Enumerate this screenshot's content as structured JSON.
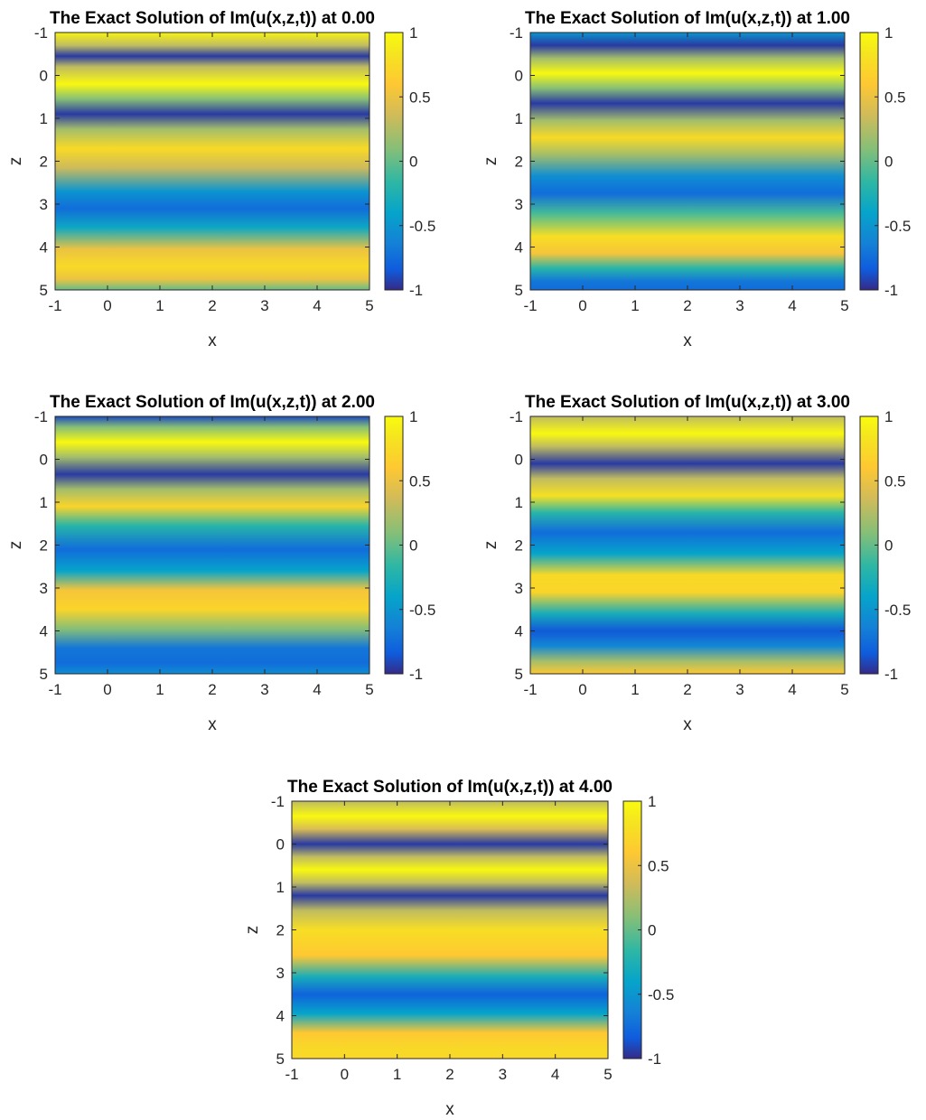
{
  "chart_data": [
    {
      "type": "heatmap",
      "title": "The Exact Solution of Im(u(x,z,t)) at 0.00",
      "t": 0.0,
      "xlabel": "x",
      "ylabel": "z",
      "xlim": [
        -1,
        5
      ],
      "ylim": [
        -1,
        5
      ],
      "y_reversed": true,
      "xticks": [
        "-1",
        "0",
        "1",
        "2",
        "3",
        "4",
        "5"
      ],
      "yticks": [
        "-1",
        "0",
        "1",
        "2",
        "3",
        "4",
        "5"
      ],
      "colorbar": {
        "ticks": [
          "1",
          "0.5",
          "0",
          "-0.5",
          "-1"
        ],
        "clim": [
          -1,
          1
        ],
        "colormap": "parula"
      },
      "stripes": [
        {
          "z": -1.0,
          "value": 0.95
        },
        {
          "z": -0.7,
          "value": 0.3
        },
        {
          "z": -0.45,
          "value": -0.95
        },
        {
          "z": -0.2,
          "value": 0.3
        },
        {
          "z": 0.2,
          "value": 0.98
        },
        {
          "z": 0.55,
          "value": 0.1
        },
        {
          "z": 0.9,
          "value": -0.95
        },
        {
          "z": 1.25,
          "value": 0.2
        },
        {
          "z": 1.7,
          "value": 0.75
        },
        {
          "z": 2.15,
          "value": 0.35
        },
        {
          "z": 2.7,
          "value": -0.5
        },
        {
          "z": 3.1,
          "value": -0.75
        },
        {
          "z": 3.55,
          "value": -0.35
        },
        {
          "z": 4.05,
          "value": 0.5
        },
        {
          "z": 4.45,
          "value": 0.75
        },
        {
          "z": 4.75,
          "value": 0.5
        },
        {
          "z": 5.0,
          "value": 0.0
        }
      ]
    },
    {
      "type": "heatmap",
      "title": "The Exact Solution of Im(u(x,z,t)) at 1.00",
      "t": 1.0,
      "xlabel": "x",
      "ylabel": "z",
      "xlim": [
        -1,
        5
      ],
      "ylim": [
        -1,
        5
      ],
      "y_reversed": true,
      "xticks": [
        "-1",
        "0",
        "1",
        "2",
        "3",
        "4",
        "5"
      ],
      "yticks": [
        "-1",
        "0",
        "1",
        "2",
        "3",
        "4",
        "5"
      ],
      "colorbar": {
        "ticks": [
          "1",
          "0.5",
          "0",
          "-0.5",
          "-1"
        ],
        "clim": [
          -1,
          1
        ],
        "colormap": "parula"
      },
      "stripes": [
        {
          "z": -1.0,
          "value": -0.5
        },
        {
          "z": -0.7,
          "value": -0.95
        },
        {
          "z": -0.4,
          "value": 0.2
        },
        {
          "z": -0.05,
          "value": 0.98
        },
        {
          "z": 0.3,
          "value": 0.1
        },
        {
          "z": 0.65,
          "value": -0.95
        },
        {
          "z": 1.05,
          "value": 0.2
        },
        {
          "z": 1.45,
          "value": 0.75
        },
        {
          "z": 1.85,
          "value": 0.2
        },
        {
          "z": 2.35,
          "value": -0.55
        },
        {
          "z": 2.75,
          "value": -0.75
        },
        {
          "z": 3.2,
          "value": -0.1
        },
        {
          "z": 3.75,
          "value": 0.78
        },
        {
          "z": 4.15,
          "value": 0.55
        },
        {
          "z": 4.5,
          "value": -0.2
        },
        {
          "z": 4.8,
          "value": -0.7
        },
        {
          "z": 5.0,
          "value": -0.75
        }
      ]
    },
    {
      "type": "heatmap",
      "title": "The Exact Solution of Im(u(x,z,t)) at 2.00",
      "t": 2.0,
      "xlabel": "x",
      "ylabel": "z",
      "xlim": [
        -1,
        5
      ],
      "ylim": [
        -1,
        5
      ],
      "y_reversed": true,
      "xticks": [
        "-1",
        "0",
        "1",
        "2",
        "3",
        "4",
        "5"
      ],
      "yticks": [
        "-1",
        "0",
        "1",
        "2",
        "3",
        "4",
        "5"
      ],
      "colorbar": {
        "ticks": [
          "1",
          "0.5",
          "0",
          "-0.5",
          "-1"
        ],
        "clim": [
          -1,
          1
        ],
        "colormap": "parula"
      },
      "stripes": [
        {
          "z": -1.0,
          "value": -0.9
        },
        {
          "z": -0.75,
          "value": 0.1
        },
        {
          "z": -0.4,
          "value": 0.98
        },
        {
          "z": -0.05,
          "value": 0.2
        },
        {
          "z": 0.35,
          "value": -0.95
        },
        {
          "z": 0.7,
          "value": 0.2
        },
        {
          "z": 1.1,
          "value": 0.7
        },
        {
          "z": 1.55,
          "value": -0.2
        },
        {
          "z": 2.1,
          "value": -0.75
        },
        {
          "z": 2.6,
          "value": -0.4
        },
        {
          "z": 3.05,
          "value": 0.55
        },
        {
          "z": 3.5,
          "value": 0.7
        },
        {
          "z": 3.95,
          "value": 0.1
        },
        {
          "z": 4.4,
          "value": -0.7
        },
        {
          "z": 4.75,
          "value": -0.75
        },
        {
          "z": 5.0,
          "value": -0.55
        }
      ]
    },
    {
      "type": "heatmap",
      "title": "The Exact Solution of Im(u(x,z,t)) at 3.00",
      "t": 3.0,
      "xlabel": "x",
      "ylabel": "z",
      "xlim": [
        -1,
        5
      ],
      "ylim": [
        -1,
        5
      ],
      "y_reversed": true,
      "xticks": [
        "-1",
        "0",
        "1",
        "2",
        "3",
        "4",
        "5"
      ],
      "yticks": [
        "-1",
        "0",
        "1",
        "2",
        "3",
        "4",
        "5"
      ],
      "colorbar": {
        "ticks": [
          "1",
          "0.5",
          "0",
          "-0.5",
          "-1"
        ],
        "clim": [
          -1,
          1
        ],
        "colormap": "parula"
      },
      "stripes": [
        {
          "z": -1.0,
          "value": 0.3
        },
        {
          "z": -0.6,
          "value": 0.98
        },
        {
          "z": -0.3,
          "value": 0.3
        },
        {
          "z": 0.1,
          "value": -0.95
        },
        {
          "z": 0.45,
          "value": 0.3
        },
        {
          "z": 0.85,
          "value": 0.8
        },
        {
          "z": 1.25,
          "value": -0.2
        },
        {
          "z": 1.7,
          "value": -0.75
        },
        {
          "z": 2.2,
          "value": -0.4
        },
        {
          "z": 2.7,
          "value": 0.75
        },
        {
          "z": 3.1,
          "value": 0.7
        },
        {
          "z": 3.6,
          "value": -0.3
        },
        {
          "z": 4.0,
          "value": -0.85
        },
        {
          "z": 4.35,
          "value": -0.6
        },
        {
          "z": 4.7,
          "value": 0.2
        },
        {
          "z": 5.0,
          "value": 0.6
        }
      ]
    },
    {
      "type": "heatmap",
      "title": "The Exact Solution of Im(u(x,z,t)) at 4.00",
      "t": 4.0,
      "xlabel": "x",
      "ylabel": "z",
      "xlim": [
        -1,
        5
      ],
      "ylim": [
        -1,
        5
      ],
      "y_reversed": true,
      "xticks": [
        "-1",
        "0",
        "1",
        "2",
        "3",
        "4",
        "5"
      ],
      "yticks": [
        "-1",
        "0",
        "1",
        "2",
        "3",
        "4",
        "5"
      ],
      "colorbar": {
        "ticks": [
          "1",
          "0.5",
          "0",
          "-0.5",
          "-1"
        ],
        "clim": [
          -1,
          1
        ],
        "colormap": "parula"
      },
      "stripes": [
        {
          "z": -1.0,
          "value": 0.3
        },
        {
          "z": -0.65,
          "value": 0.98
        },
        {
          "z": -0.35,
          "value": 0.4
        },
        {
          "z": 0.0,
          "value": -0.95
        },
        {
          "z": 0.3,
          "value": 0.3
        },
        {
          "z": 0.6,
          "value": 0.98
        },
        {
          "z": 0.9,
          "value": 0.3
        },
        {
          "z": 1.2,
          "value": -0.95
        },
        {
          "z": 1.55,
          "value": 0.3
        },
        {
          "z": 2.0,
          "value": 0.78
        },
        {
          "z": 2.6,
          "value": 0.6
        },
        {
          "z": 3.1,
          "value": -0.3
        },
        {
          "z": 3.5,
          "value": -0.8
        },
        {
          "z": 3.95,
          "value": -0.4
        },
        {
          "z": 4.4,
          "value": 0.6
        },
        {
          "z": 4.8,
          "value": 0.75
        },
        {
          "z": 5.0,
          "value": 0.72
        }
      ]
    }
  ]
}
